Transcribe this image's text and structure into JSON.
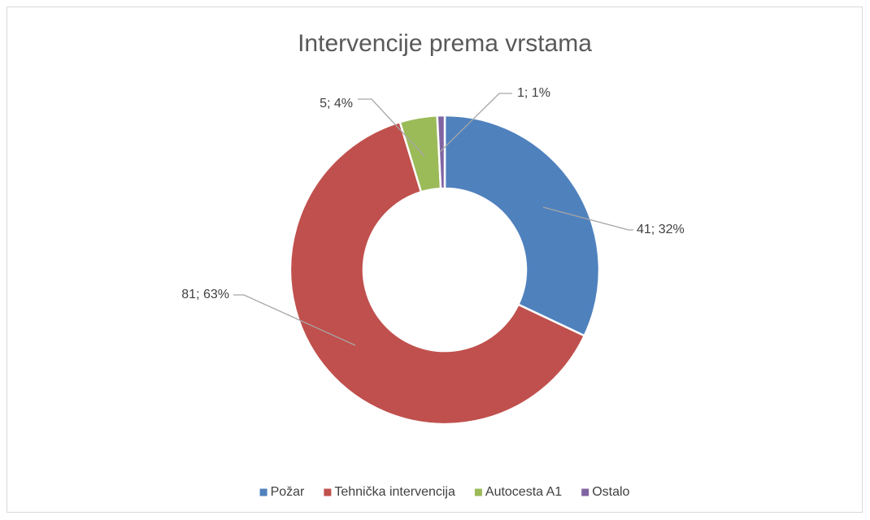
{
  "chart_data": {
    "type": "donut",
    "title": "Intervencije prema vrstama",
    "categories": [
      "Požar",
      "Tehnička intervencija",
      "Autocesta A1",
      "Ostalo"
    ],
    "values": [
      41,
      81,
      5,
      1
    ],
    "value_labels": [
      "41; 32%",
      "81; 63%",
      "5; 4%",
      "1; 1%"
    ],
    "colors": [
      "#4f81bd",
      "#c0504d",
      "#9bbb59",
      "#8064a2"
    ],
    "legend": "bottom"
  }
}
